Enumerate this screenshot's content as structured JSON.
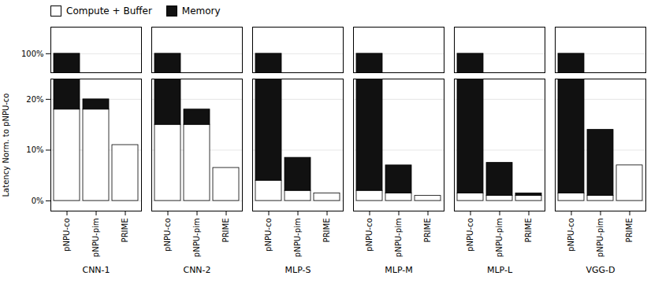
{
  "chart_data": {
    "type": "bar",
    "stacked": true,
    "ylabel": "Latency Norm. to pNPU-co",
    "groups": [
      "CNN-1",
      "CNN-2",
      "MLP-S",
      "MLP-M",
      "MLP-L",
      "VGG-D"
    ],
    "categories": [
      "pNPU-co",
      "pNPU-pim",
      "PRIME"
    ],
    "series": [
      {
        "name": "Compute + Buffer",
        "color": "#ffffff",
        "values": [
          [
            18,
            18,
            11
          ],
          [
            15,
            15,
            6.5
          ],
          [
            4,
            2,
            1.5
          ],
          [
            2,
            1.5,
            1
          ],
          [
            1.5,
            1,
            1
          ],
          [
            1.5,
            1,
            7
          ]
        ]
      },
      {
        "name": "Memory",
        "color": "#111111",
        "values": [
          [
            82,
            2,
            0
          ],
          [
            85,
            3,
            0
          ],
          [
            96,
            6.5,
            0
          ],
          [
            98,
            5.5,
            0
          ],
          [
            98.5,
            6.5,
            0.5
          ],
          [
            98.5,
            13,
            0
          ]
        ]
      }
    ],
    "ylim": [
      [
        -2,
        24
      ],
      [
        95,
        107
      ]
    ],
    "yticks": [
      [
        {
          "value": 0,
          "label": "0%"
        },
        {
          "value": 10,
          "label": "10%"
        },
        {
          "value": 20,
          "label": "20%"
        }
      ],
      [
        {
          "value": 100,
          "label": "100%"
        }
      ]
    ],
    "grid": true,
    "legend": "upper left"
  }
}
